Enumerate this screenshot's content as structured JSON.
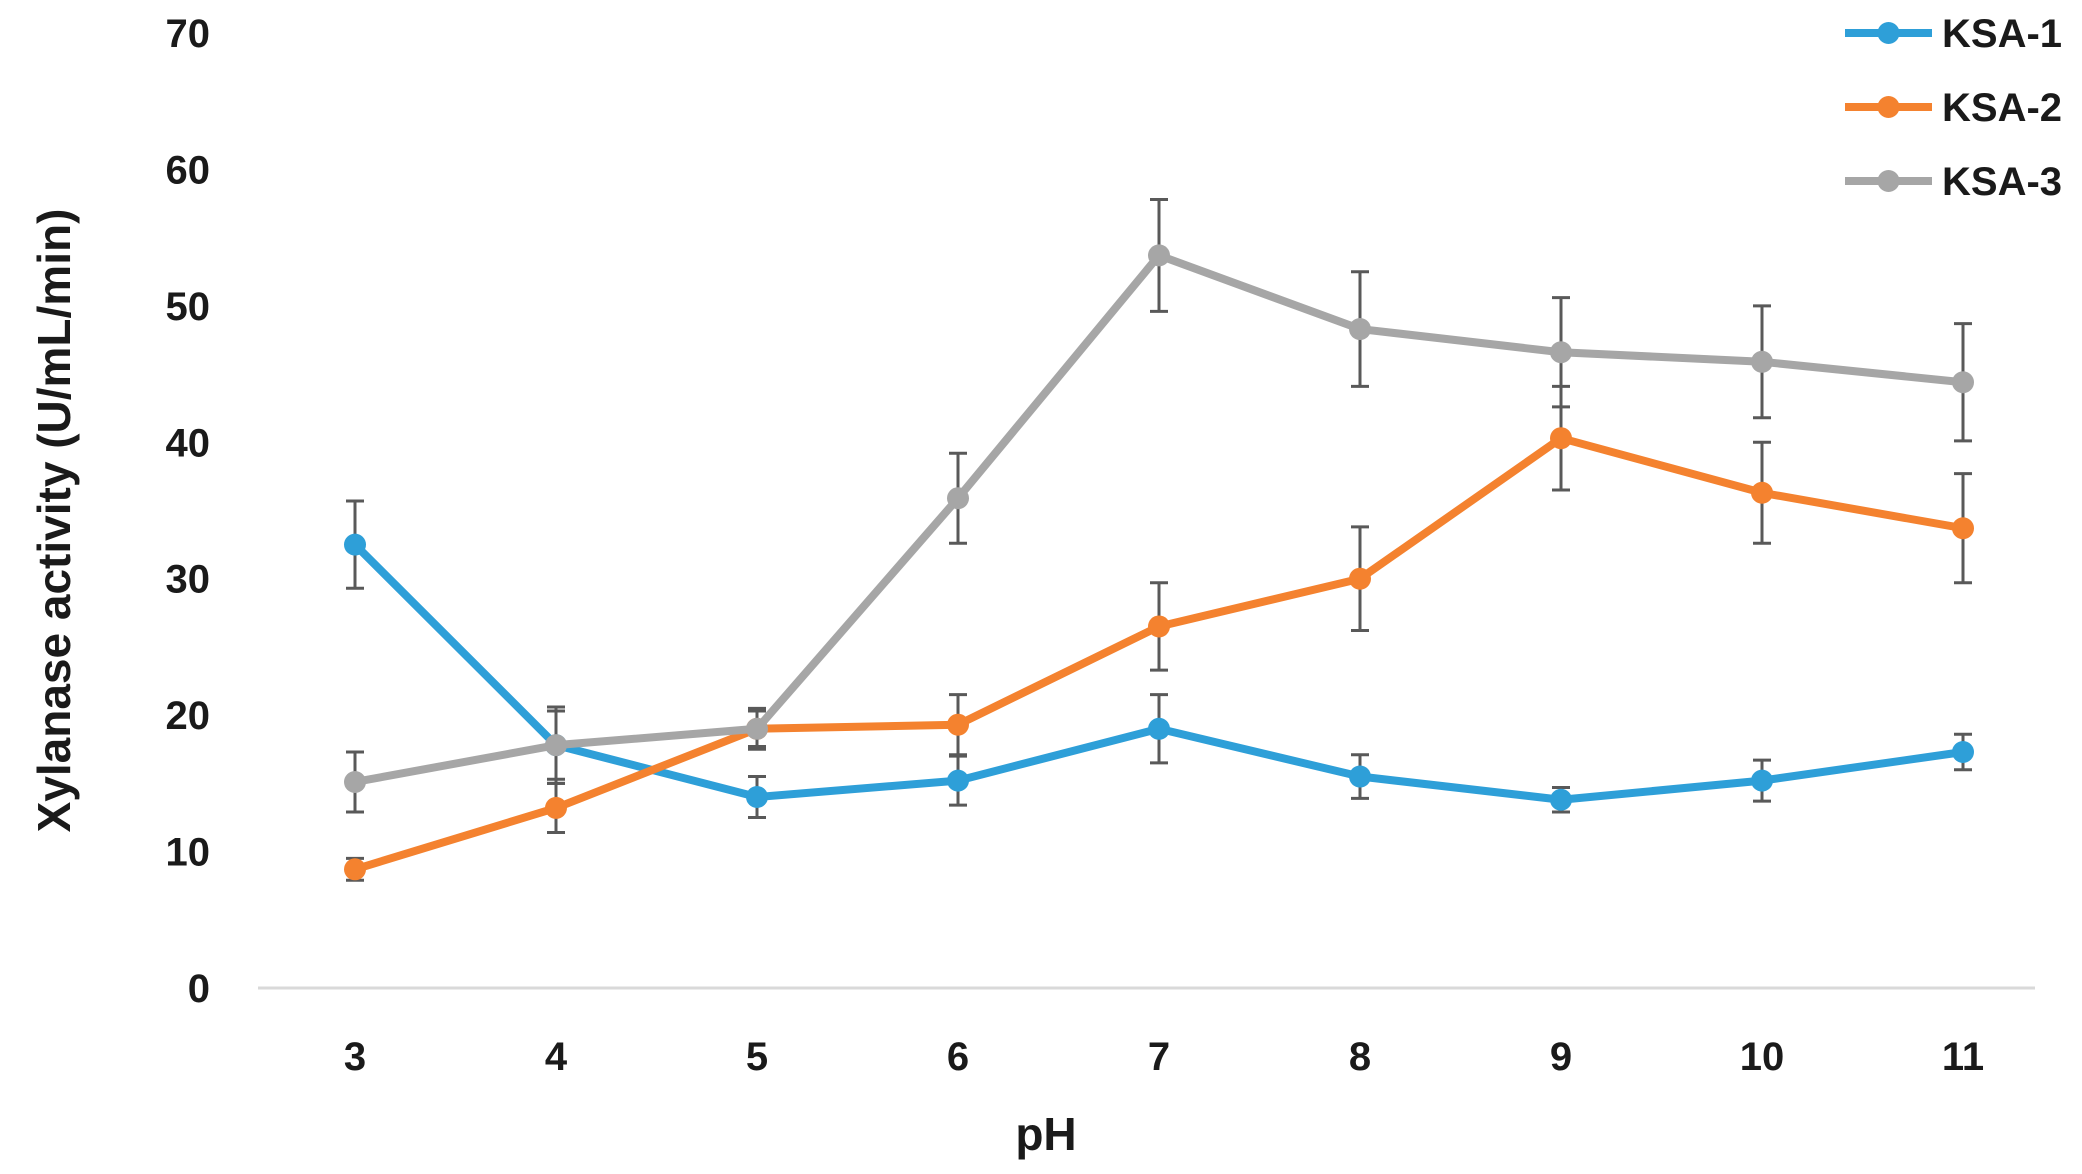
{
  "chart_data": {
    "type": "line",
    "title": "",
    "xlabel": "pH",
    "ylabel": "Xylanase activity (U/mL/min)",
    "categories": [
      "3",
      "4",
      "5",
      "6",
      "7",
      "8",
      "9",
      "10",
      "11"
    ],
    "ylim": [
      0,
      70
    ],
    "yticks": [
      "0",
      "10",
      "20",
      "30",
      "40",
      "50",
      "60",
      "70"
    ],
    "grid": false,
    "legend_position": "top-right",
    "series": [
      {
        "name": "KSA-1",
        "color": "#2e9fd8",
        "values": [
          32.5,
          17.8,
          14.0,
          15.2,
          19.0,
          15.5,
          13.8,
          15.2,
          17.3
        ],
        "errors": [
          3.2,
          2.5,
          1.5,
          1.8,
          2.5,
          1.6,
          0.9,
          1.5,
          1.3
        ]
      },
      {
        "name": "KSA-2",
        "color": "#f4822f",
        "values": [
          8.7,
          13.2,
          19.0,
          19.3,
          26.5,
          30.0,
          40.3,
          36.3,
          33.7
        ],
        "errors": [
          0.8,
          1.8,
          1.5,
          2.2,
          3.2,
          3.8,
          3.8,
          3.7,
          4.0
        ]
      },
      {
        "name": "KSA-3",
        "color": "#a6a6a6",
        "values": [
          15.1,
          17.8,
          19.0,
          35.9,
          53.7,
          48.3,
          46.6,
          45.9,
          44.4
        ],
        "errors": [
          2.2,
          2.8,
          1.3,
          3.3,
          4.1,
          4.2,
          4.0,
          4.1,
          4.3
        ]
      }
    ]
  }
}
